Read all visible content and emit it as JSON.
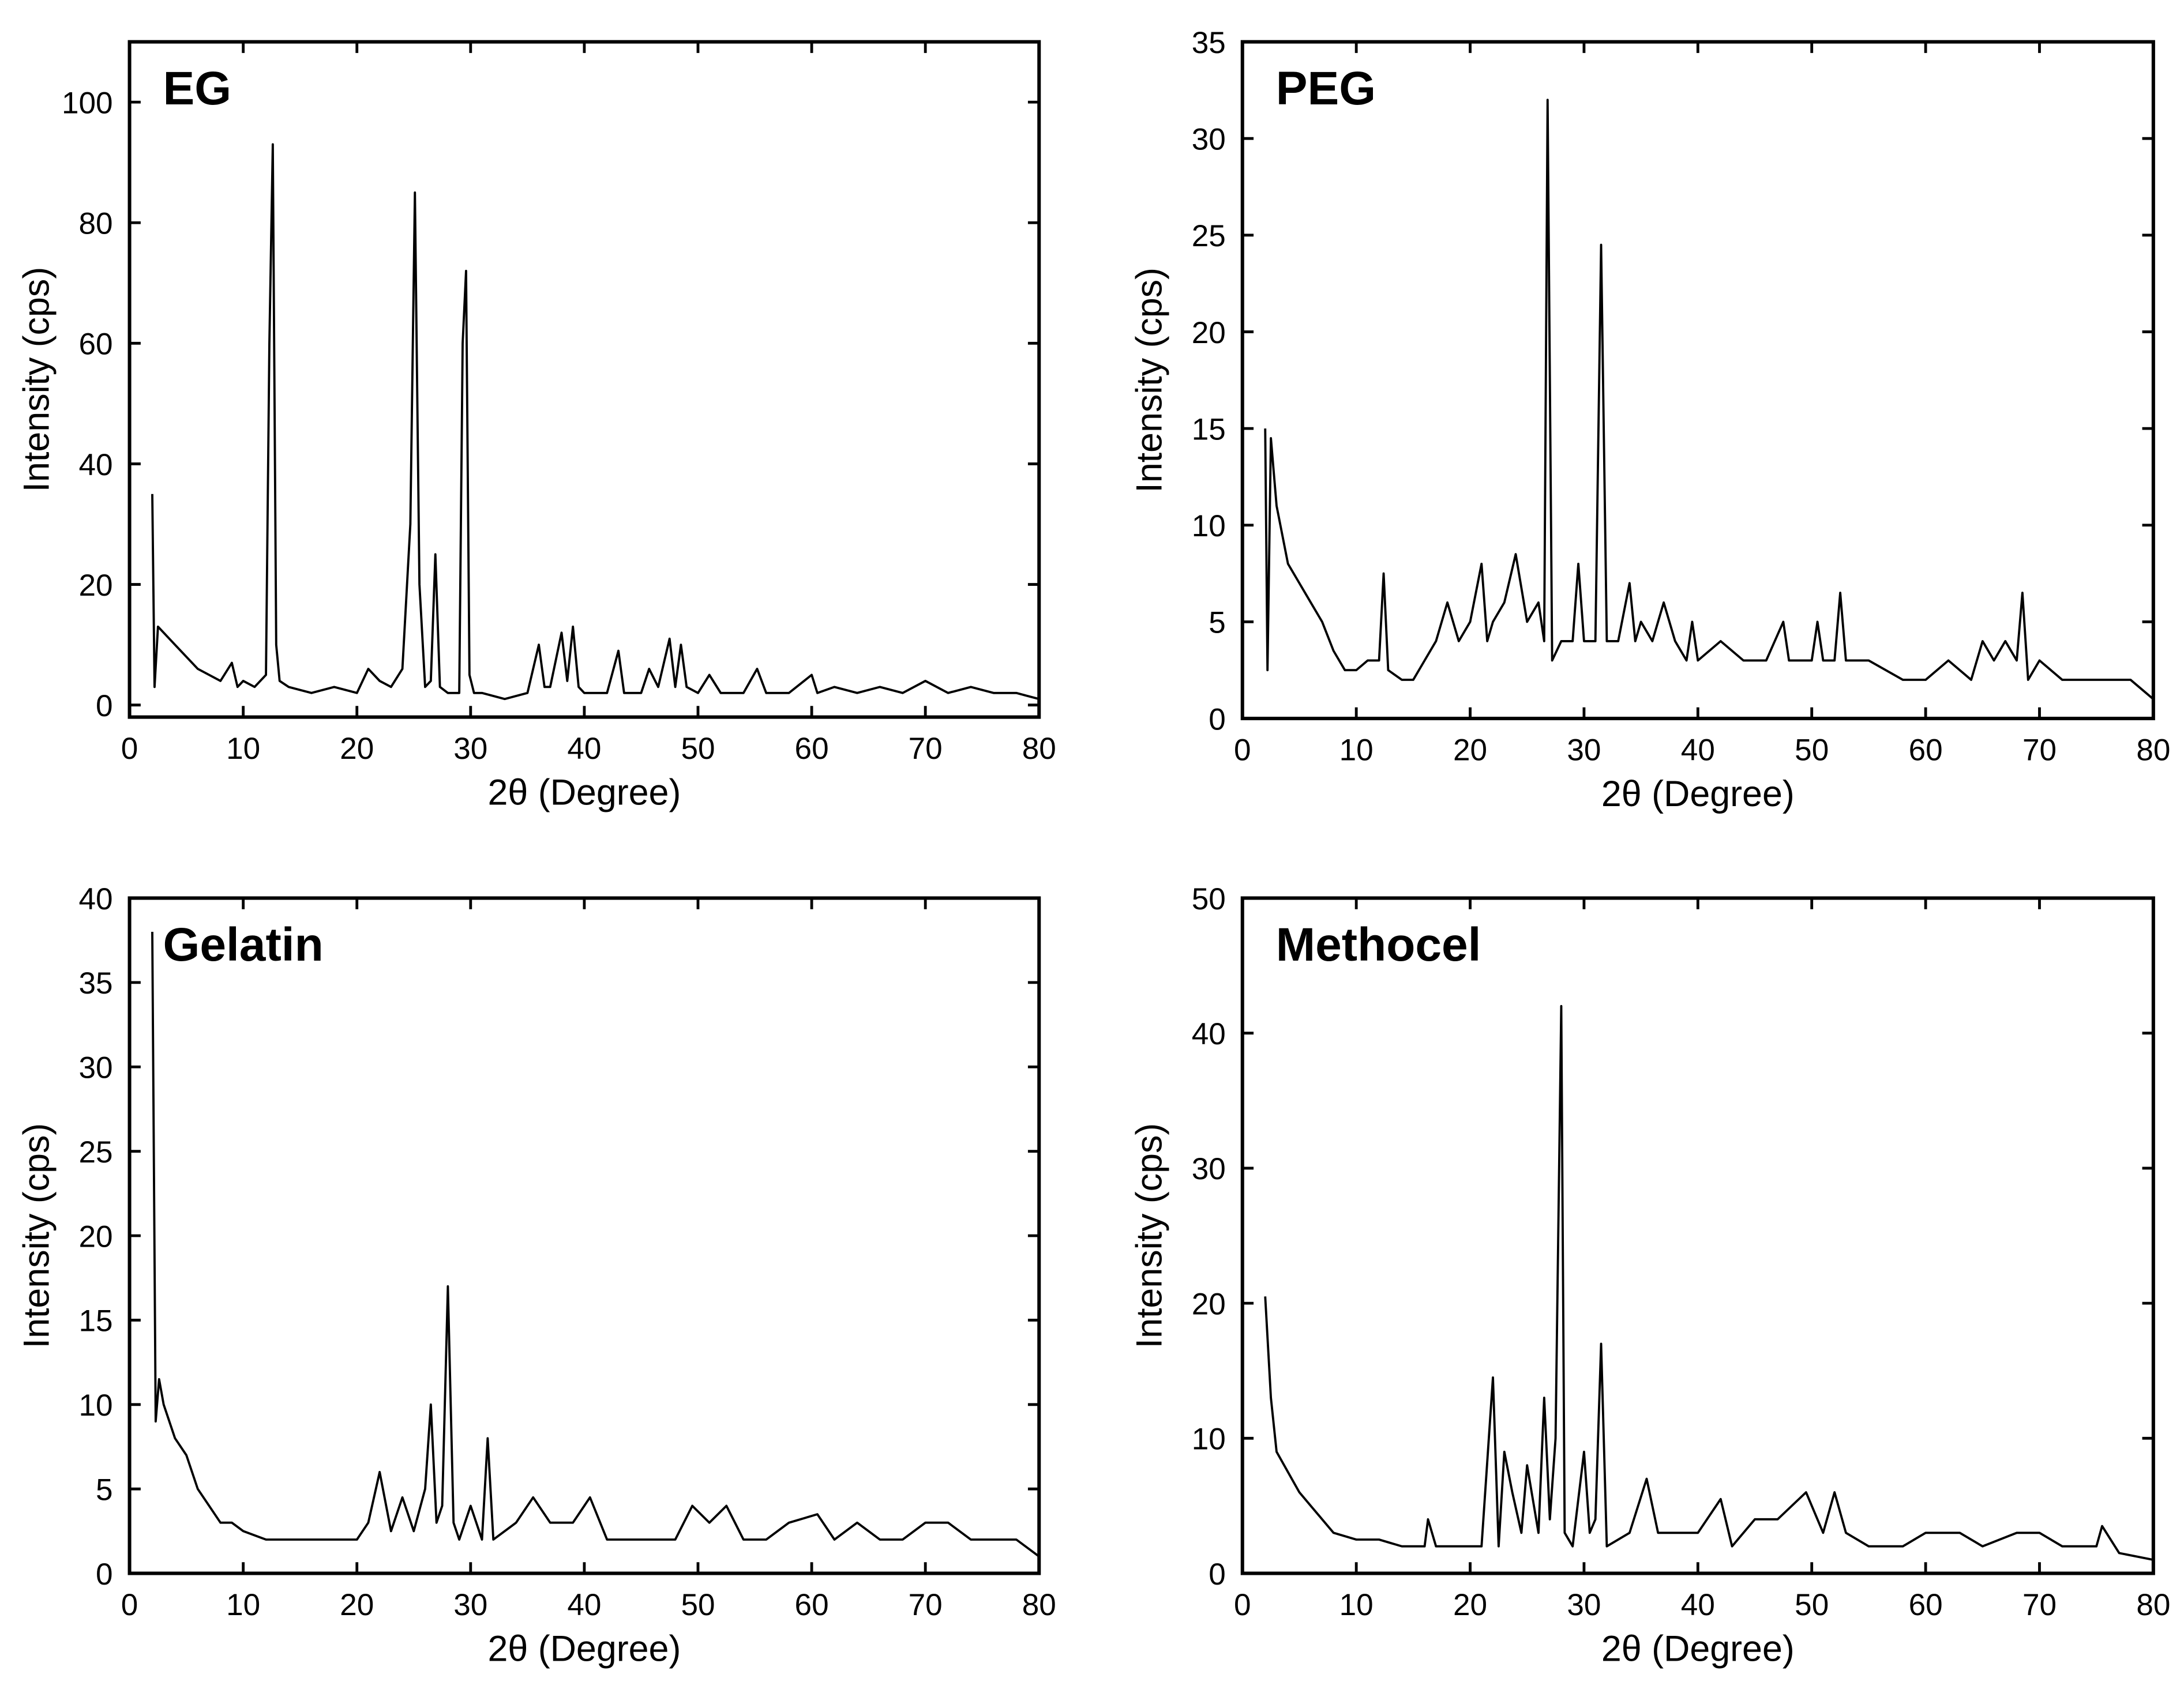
{
  "chart_data": [
    {
      "type": "line",
      "title": "EG",
      "x_label": "2θ (Degree)",
      "y_label": "Intensity (cps)",
      "xlim": [
        0,
        80
      ],
      "xticks": [
        0,
        10,
        20,
        30,
        40,
        50,
        60,
        70,
        80
      ],
      "ylim": [
        -2,
        110
      ],
      "yticks": [
        0,
        20,
        40,
        60,
        80,
        100
      ],
      "color": "#000000",
      "x": [
        2,
        2.2,
        2.5,
        3,
        4,
        5,
        6,
        7,
        8,
        9,
        9.5,
        10,
        11,
        12,
        12.3,
        12.6,
        12.9,
        13.2,
        14,
        16,
        18,
        20,
        21,
        22,
        23,
        24,
        24.7,
        25.1,
        25.5,
        26,
        26.5,
        26.9,
        27.3,
        28,
        29,
        29.3,
        29.6,
        29.9,
        30.3,
        31,
        33,
        35,
        36,
        36.5,
        37,
        38,
        38.5,
        39,
        39.5,
        40,
        42,
        43,
        43.5,
        44,
        45,
        45.7,
        46.5,
        47.5,
        48,
        48.5,
        49,
        50,
        51,
        52,
        54,
        55.2,
        56,
        58,
        60,
        60.5,
        62,
        64,
        66,
        68,
        70,
        72,
        74,
        76,
        78,
        80
      ],
      "values": [
        35,
        3,
        13,
        12,
        10,
        8,
        6,
        5,
        4,
        7,
        3,
        4,
        3,
        5,
        60,
        93,
        10,
        4,
        3,
        2,
        3,
        2,
        6,
        4,
        3,
        6,
        30,
        85,
        20,
        3,
        4,
        25,
        3,
        2,
        2,
        60,
        72,
        5,
        2,
        2,
        1,
        2,
        10,
        3,
        3,
        12,
        4,
        13,
        3,
        2,
        2,
        9,
        2,
        2,
        2,
        6,
        3,
        11,
        3,
        10,
        3,
        2,
        5,
        2,
        2,
        6,
        2,
        2,
        5,
        2,
        3,
        2,
        3,
        2,
        4,
        2,
        3,
        2,
        2,
        1
      ]
    },
    {
      "type": "line",
      "title": "PEG",
      "x_label": "2θ (Degree)",
      "y_label": "Intensity (cps)",
      "xlim": [
        0,
        80
      ],
      "xticks": [
        0,
        10,
        20,
        30,
        40,
        50,
        60,
        70,
        80
      ],
      "ylim": [
        0,
        35
      ],
      "yticks": [
        0,
        5,
        10,
        15,
        20,
        25,
        30,
        35
      ],
      "color": "#000000",
      "x": [
        2,
        2.2,
        2.5,
        3,
        4,
        5,
        6,
        7,
        8,
        9,
        10,
        11,
        12,
        12.4,
        12.8,
        14,
        15,
        16,
        17,
        18,
        19,
        20,
        21,
        21.5,
        22,
        23,
        24,
        25,
        26,
        26.5,
        26.8,
        27.2,
        28,
        29,
        29.5,
        30,
        31,
        31.5,
        32,
        33,
        34,
        34.5,
        35,
        36,
        37,
        38,
        39,
        39.5,
        40,
        42,
        44,
        46,
        47.5,
        48,
        50,
        50.5,
        51,
        52,
        52.5,
        53,
        55,
        58,
        60,
        62,
        64,
        65,
        66,
        67,
        68,
        68.5,
        69,
        70,
        72,
        74,
        76,
        78,
        80
      ],
      "values": [
        15,
        2.5,
        14.5,
        11,
        8,
        7,
        6,
        5,
        3.5,
        2.5,
        2.5,
        3,
        3,
        7.5,
        2.5,
        2,
        2,
        3,
        4,
        6,
        4,
        5,
        8,
        4,
        5,
        6,
        8.5,
        5,
        6,
        4,
        32,
        3,
        4,
        4,
        8,
        4,
        4,
        24.5,
        4,
        4,
        7,
        4,
        5,
        4,
        6,
        4,
        3,
        5,
        3,
        4,
        3,
        3,
        5,
        3,
        3,
        5,
        3,
        3,
        6.5,
        3,
        3,
        2,
        2,
        3,
        2,
        4,
        3,
        4,
        3,
        6.5,
        2,
        3,
        2,
        2,
        2,
        2,
        1
      ]
    },
    {
      "type": "line",
      "title": "Gelatin",
      "x_label": "2θ (Degree)",
      "y_label": "Intensity (cps)",
      "xlim": [
        0,
        80
      ],
      "xticks": [
        0,
        10,
        20,
        30,
        40,
        50,
        60,
        70,
        80
      ],
      "ylim": [
        0,
        40
      ],
      "yticks": [
        0,
        5,
        10,
        15,
        20,
        25,
        30,
        35,
        40
      ],
      "color": "#000000",
      "x": [
        2,
        2.3,
        2.6,
        3,
        4,
        5,
        6,
        7,
        8,
        9,
        10,
        12,
        14,
        16,
        18,
        20,
        21,
        22,
        23,
        24,
        25,
        26,
        26.5,
        27,
        27.5,
        28,
        28.5,
        29,
        30,
        31,
        31.5,
        32,
        34,
        35.5,
        37,
        39,
        40.5,
        42,
        44,
        46,
        48,
        49.5,
        51,
        52.5,
        54,
        56,
        58,
        60.5,
        62,
        64,
        66,
        68,
        70,
        72,
        74,
        76,
        78,
        80
      ],
      "values": [
        38,
        9,
        11.5,
        10,
        8,
        7,
        5,
        4,
        3,
        3,
        2.5,
        2,
        2,
        2,
        2,
        2,
        3,
        6,
        2.5,
        4.5,
        2.5,
        5,
        10,
        3,
        4,
        17,
        3,
        2,
        4,
        2,
        8,
        2,
        3,
        4.5,
        3,
        3,
        4.5,
        2,
        2,
        2,
        2,
        4,
        3,
        4,
        2,
        2,
        3,
        3.5,
        2,
        3,
        2,
        2,
        3,
        3,
        2,
        2,
        2,
        1
      ]
    },
    {
      "type": "line",
      "title": "Methocel",
      "x_label": "2θ (Degree)",
      "y_label": "Intensity (cps)",
      "xlim": [
        0,
        80
      ],
      "xticks": [
        0,
        10,
        20,
        30,
        40,
        50,
        60,
        70,
        80
      ],
      "ylim": [
        0,
        50
      ],
      "yticks": [
        0,
        10,
        20,
        30,
        40,
        50
      ],
      "color": "#000000",
      "x": [
        2,
        2.5,
        3,
        4,
        5,
        6,
        7,
        8,
        10,
        12,
        14,
        16,
        16.3,
        17,
        19,
        21,
        22,
        22.5,
        23,
        23.7,
        24.5,
        25,
        26,
        26.5,
        27,
        27.5,
        28,
        28.3,
        29,
        30,
        30.5,
        31,
        31.5,
        32,
        34,
        35.5,
        36.5,
        38,
        40,
        42,
        43,
        45,
        47,
        49.5,
        51,
        52,
        53,
        55,
        58,
        60,
        63,
        65,
        68,
        70,
        72,
        75,
        75.5,
        77,
        80
      ],
      "values": [
        20.5,
        13,
        9,
        7.5,
        6,
        5,
        4,
        3,
        2.5,
        2.5,
        2,
        2,
        4,
        2,
        2,
        2,
        14.5,
        2,
        9,
        6,
        3,
        8,
        3,
        13,
        4,
        10,
        42,
        3,
        2,
        9,
        3,
        4,
        17,
        2,
        3,
        7,
        3,
        3,
        3,
        5.5,
        2,
        4,
        4,
        6,
        3,
        6,
        3,
        2,
        2,
        3,
        3,
        2,
        3,
        3,
        2,
        2,
        3.5,
        1.5,
        1
      ]
    }
  ]
}
